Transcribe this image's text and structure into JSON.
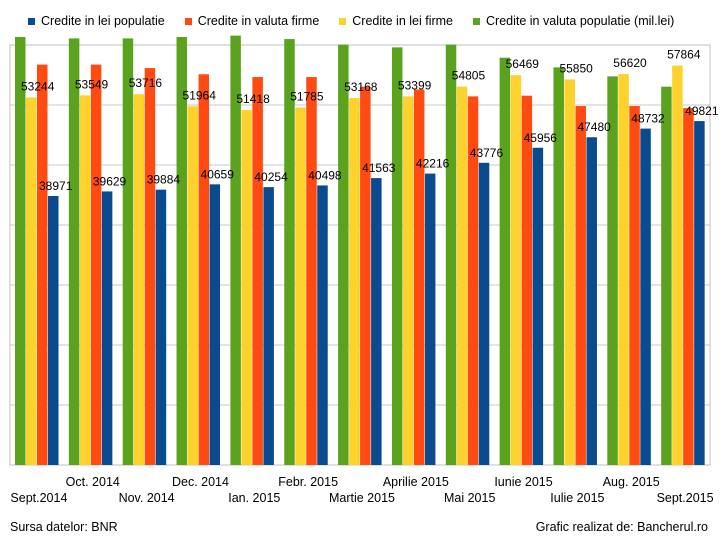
{
  "legend": [
    {
      "label": "Credite in lei populatie",
      "color": "#0a4a8f"
    },
    {
      "label": "Credite in valuta firme",
      "color": "#ff4a12"
    },
    {
      "label": "Credite in lei firme",
      "color": "#fdd22c"
    },
    {
      "label": "Credite in valuta populatie (mil.lei)",
      "color": "#5ba31f"
    }
  ],
  "footer": {
    "source": "Sursa datelor: BNR",
    "credit": "Grafic realizat de: Bancherul.ro"
  },
  "chart_data": {
    "type": "bar",
    "grid": true,
    "legend_position": "top",
    "ylim": [
      0,
      62000
    ],
    "categories": [
      "Sept.2014",
      "Oct. 2014",
      "Nov. 2014",
      "Dec. 2014",
      "Ian. 2015",
      "Febr. 2015",
      "Martie 2015",
      "Aprilie 2015",
      "Mai 2015",
      "Iunie 2015",
      "Iulie 2015",
      "Aug. 2015",
      "Sept.2015"
    ],
    "series": [
      {
        "name": "Credite in valuta populatie (mil.lei)",
        "color": "#5ba31f",
        "values": [
          62000,
          61800,
          61800,
          62000,
          62200,
          61700,
          60900,
          60500,
          60900,
          59000,
          57600,
          56300,
          54800
        ]
      },
      {
        "name": "Credite in lei firme",
        "color": "#fdd22c",
        "values": [
          53244,
          53549,
          53716,
          51964,
          51418,
          51785,
          53168,
          53399,
          54805,
          56469,
          55850,
          56620,
          57864
        ]
      },
      {
        "name": "Credite in valuta firme",
        "color": "#ff4a12",
        "values": [
          58000,
          58000,
          57500,
          56600,
          56200,
          56200,
          54800,
          54400,
          53400,
          53500,
          52000,
          52000,
          51700
        ]
      },
      {
        "name": "Credite in lei populatie",
        "color": "#0a4a8f",
        "values": [
          38971,
          39629,
          39884,
          40659,
          40254,
          40498,
          41563,
          42216,
          43776,
          45956,
          47480,
          48732,
          49821
        ]
      }
    ],
    "data_labels": {
      "Credite in lei firme": [
        "53244",
        "53549",
        "53716",
        "51964",
        "51418",
        "51785",
        "53168",
        "53399",
        "54805",
        "56469",
        "55850",
        "56620",
        "57864"
      ],
      "Credite in lei populatie": [
        "38971",
        "39629",
        "39884",
        "40659",
        "40254",
        "40498",
        "41563",
        "42216",
        "43776",
        "45956",
        "47480",
        "48732",
        "49821"
      ]
    }
  }
}
